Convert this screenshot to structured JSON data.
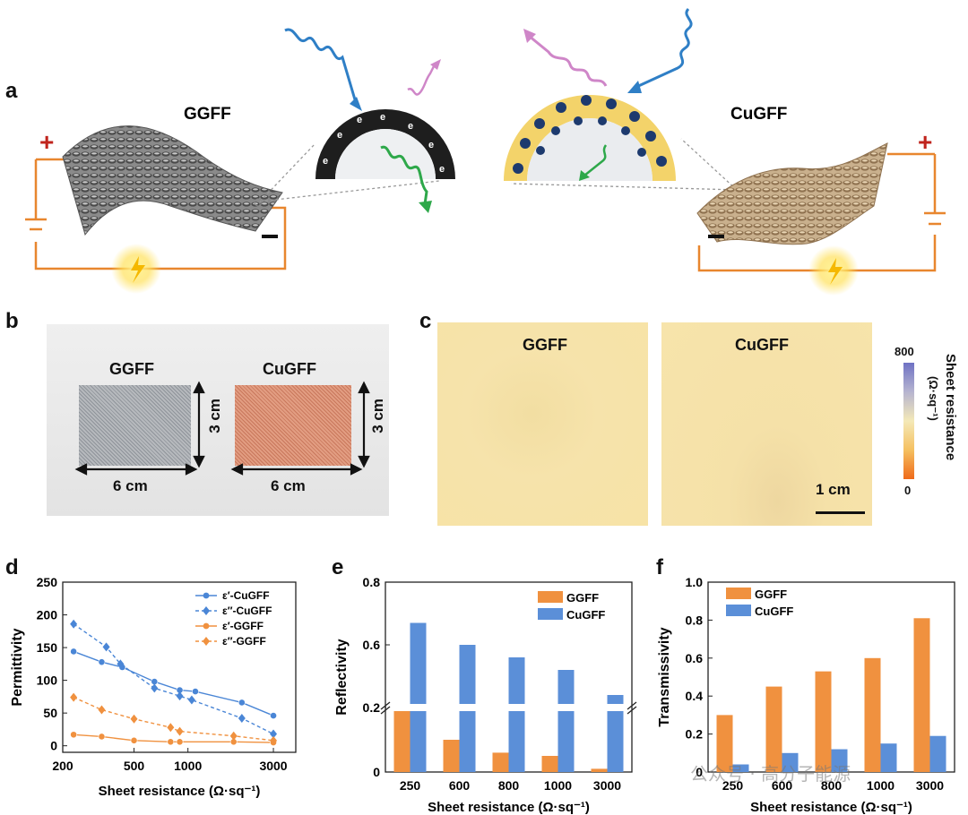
{
  "panels": {
    "a": "a",
    "b": "b",
    "c": "c",
    "d": "d",
    "e": "e",
    "f": "f"
  },
  "panel_a": {
    "left_label": "GGFF",
    "right_label": "CuGFF",
    "plus": "+",
    "minus": "−",
    "electron": "e",
    "colors": {
      "circuit": "#e8862e",
      "plus": "#c0241d",
      "incident": "#2f7fc6",
      "reflected": "#cf86c8",
      "transmitted": "#2ea84a",
      "copper": "#f3d36a"
    }
  },
  "panel_b": {
    "left_label": "GGFF",
    "right_label": "CuGFF",
    "height_label": "3 cm",
    "width_label": "6 cm"
  },
  "panel_c": {
    "left_label": "GGFF",
    "right_label": "CuGFF",
    "scale_label": "1 cm",
    "colorbar_max": "800",
    "colorbar_min": "0",
    "colorbar_title": "Sheet resistance",
    "colorbar_unit": "(Ω·sq⁻¹)"
  },
  "chart_data": [
    {
      "type": "line",
      "panel": "d",
      "xlabel": "Sheet resistance (Ω·sq⁻¹)",
      "ylabel": "Permittivity",
      "xscale": "log",
      "xlim": [
        200,
        4000
      ],
      "ylim": [
        -10,
        250
      ],
      "xticks": [
        200,
        500,
        1000,
        3000
      ],
      "yticks": [
        0,
        50,
        100,
        150,
        200,
        250
      ],
      "series": [
        {
          "name": "ε′-CuGFF",
          "color": "#4a86d6",
          "dash": false,
          "marker": "circle",
          "x": [
            230,
            330,
            430,
            650,
            900,
            1100,
            2000,
            3000
          ],
          "y": [
            144,
            128,
            120,
            98,
            85,
            83,
            66,
            46
          ]
        },
        {
          "name": "ε″-CuGFF",
          "color": "#4a86d6",
          "dash": true,
          "marker": "diamond",
          "x": [
            230,
            350,
            420,
            650,
            900,
            1050,
            2000,
            3000
          ],
          "y": [
            186,
            151,
            125,
            88,
            76,
            70,
            42,
            18
          ]
        },
        {
          "name": "ε′-GGFF",
          "color": "#f0913f",
          "dash": false,
          "marker": "circle",
          "x": [
            230,
            330,
            500,
            800,
            900,
            1800,
            3000
          ],
          "y": [
            17,
            14,
            8,
            6,
            6,
            6,
            5
          ]
        },
        {
          "name": "ε″-GGFF",
          "color": "#f0913f",
          "dash": true,
          "marker": "diamond",
          "x": [
            230,
            330,
            500,
            800,
            900,
            1800,
            3000
          ],
          "y": [
            74,
            55,
            41,
            28,
            22,
            15,
            8
          ]
        }
      ]
    },
    {
      "type": "bar",
      "panel": "e",
      "categories": [
        "250",
        "600",
        "800",
        "1000",
        "3000"
      ],
      "xlabel": "Sheet resistance (Ω·sq⁻¹)",
      "ylabel": "Reflectivity",
      "yticks_low": [
        "0",
        "0.2"
      ],
      "yticks_high": [
        "0.6",
        "0.8"
      ],
      "axis_break": true,
      "series": [
        {
          "name": "GGFF",
          "color": "#f0913f",
          "values": [
            0.19,
            0.1,
            0.06,
            0.05,
            0.01
          ]
        },
        {
          "name": "CuGFF",
          "color": "#5b8fd8",
          "values": [
            0.67,
            0.6,
            0.56,
            0.52,
            0.44
          ]
        }
      ]
    },
    {
      "type": "bar",
      "panel": "f",
      "categories": [
        "250",
        "600",
        "800",
        "1000",
        "3000"
      ],
      "xlabel": "Sheet resistance (Ω·sq⁻¹)",
      "ylabel": "Transmissivity",
      "ylim": [
        0,
        1.0
      ],
      "yticks": [
        "0",
        "0.2",
        "0.4",
        "0.6",
        "0.8",
        "1.0"
      ],
      "series": [
        {
          "name": "GGFF",
          "color": "#f0913f",
          "values": [
            0.3,
            0.45,
            0.53,
            0.6,
            0.81
          ]
        },
        {
          "name": "CuGFF",
          "color": "#5b8fd8",
          "values": [
            0.04,
            0.1,
            0.12,
            0.15,
            0.19
          ]
        }
      ]
    }
  ],
  "watermark": "公众号 · 高分子能源"
}
